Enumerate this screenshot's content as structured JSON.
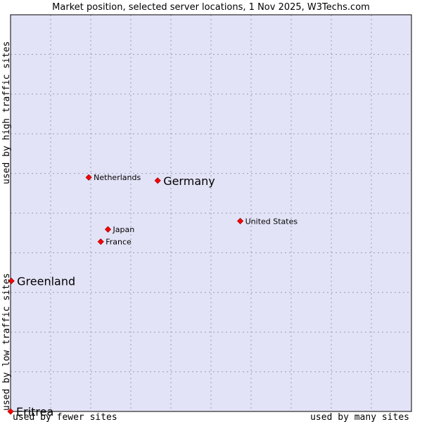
{
  "chart_data": {
    "type": "scatter",
    "title": "Market position, selected server locations, 1 Nov 2025, W3Techs.com",
    "xlabel_left": "used by fewer sites",
    "xlabel_right": "used by many sites",
    "ylabel_low": "used by low traffic sites",
    "ylabel_high": "used by high traffic sites",
    "xlim": [
      0,
      10
    ],
    "ylim": [
      0,
      10
    ],
    "grid": true,
    "colors": {
      "plot_bg": "#e3e3f7",
      "grid": "#9a9ab5",
      "point": "#ff0000",
      "point_outline": "#990000"
    },
    "points": [
      {
        "name": "Netherlands",
        "x": 1.95,
        "y": 5.9,
        "emphasis": false
      },
      {
        "name": "Germany",
        "x": 3.67,
        "y": 5.82,
        "emphasis": true
      },
      {
        "name": "United States",
        "x": 5.73,
        "y": 4.8,
        "emphasis": false
      },
      {
        "name": "Japan",
        "x": 2.43,
        "y": 4.59,
        "emphasis": false
      },
      {
        "name": "France",
        "x": 2.25,
        "y": 4.28,
        "emphasis": false
      },
      {
        "name": "Greenland",
        "x": 0.02,
        "y": 3.29,
        "emphasis": true
      },
      {
        "name": "Eritrea",
        "x": 0.0,
        "y": 0.0,
        "emphasis": true
      }
    ]
  }
}
